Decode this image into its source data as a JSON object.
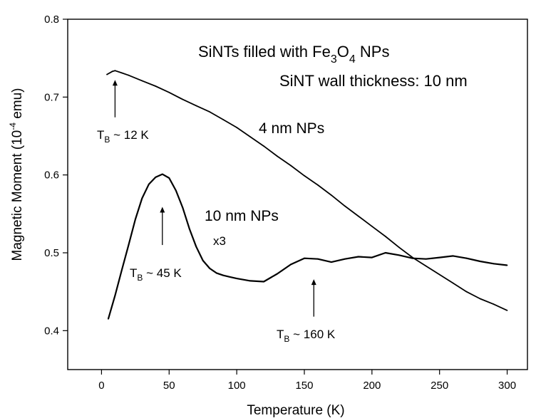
{
  "chart_data": {
    "type": "line",
    "xlabel": "Temperature (K)",
    "ylabel": {
      "base": "Magnetic Moment (10",
      "exp": "-4",
      "unit": " emu)"
    },
    "xlim": [
      -25,
      315
    ],
    "ylim": [
      0.35,
      0.8
    ],
    "xticks": [
      0,
      50,
      100,
      150,
      200,
      250,
      300
    ],
    "yticks": [
      0.4,
      0.5,
      0.6,
      0.7,
      0.8
    ],
    "grid": false,
    "legend": "none",
    "color": "#000000",
    "title": {
      "line1_pre": "SiNTs filled with Fe",
      "line1_sub1": "3",
      "line1_mid": "O",
      "line1_sub2": "4",
      "line1_post": " NPs",
      "line2": "SiNT wall thickness: 10 nm"
    },
    "series": [
      {
        "name": "4 nm NPs",
        "x": [
          4,
          8,
          10,
          15,
          20,
          30,
          40,
          50,
          60,
          70,
          80,
          90,
          100,
          110,
          120,
          130,
          140,
          150,
          160,
          170,
          180,
          190,
          200,
          210,
          220,
          230,
          240,
          250,
          260,
          270,
          280,
          290,
          300
        ],
        "y": [
          0.729,
          0.733,
          0.734,
          0.731,
          0.728,
          0.721,
          0.714,
          0.706,
          0.697,
          0.689,
          0.681,
          0.671,
          0.661,
          0.649,
          0.637,
          0.624,
          0.612,
          0.599,
          0.587,
          0.574,
          0.56,
          0.547,
          0.534,
          0.521,
          0.507,
          0.494,
          0.483,
          0.472,
          0.461,
          0.45,
          0.441,
          0.434,
          0.426
        ]
      },
      {
        "name": "10 nm NPs",
        "scale_note": "x3",
        "x": [
          5,
          10,
          15,
          20,
          25,
          30,
          35,
          40,
          45,
          50,
          55,
          60,
          65,
          70,
          75,
          80,
          85,
          90,
          95,
          100,
          110,
          120,
          130,
          140,
          150,
          160,
          170,
          180,
          190,
          200,
          210,
          220,
          230,
          240,
          250,
          260,
          270,
          280,
          290,
          300
        ],
        "y": [
          0.415,
          0.445,
          0.478,
          0.51,
          0.543,
          0.57,
          0.588,
          0.597,
          0.601,
          0.596,
          0.58,
          0.558,
          0.531,
          0.508,
          0.49,
          0.48,
          0.474,
          0.471,
          0.469,
          0.467,
          0.464,
          0.463,
          0.473,
          0.485,
          0.493,
          0.492,
          0.488,
          0.492,
          0.495,
          0.494,
          0.5,
          0.497,
          0.493,
          0.492,
          0.494,
          0.496,
          0.493,
          0.489,
          0.486,
          0.484
        ]
      }
    ],
    "annotations": [
      {
        "label": "T",
        "sub": "B",
        "rest": " ~ 12 K",
        "arrow_x": 10,
        "arrow_y_tail": 0.674,
        "arrow_y_head": 0.722
      },
      {
        "label": "T",
        "sub": "B",
        "rest": " ~ 45 K",
        "arrow_x": 45,
        "arrow_y_tail": 0.51,
        "arrow_y_head": 0.559
      },
      {
        "label": "T",
        "sub": "B",
        "rest": " ~ 160 K",
        "arrow_x": 157,
        "arrow_y_tail": 0.418,
        "arrow_y_head": 0.466
      }
    ]
  }
}
